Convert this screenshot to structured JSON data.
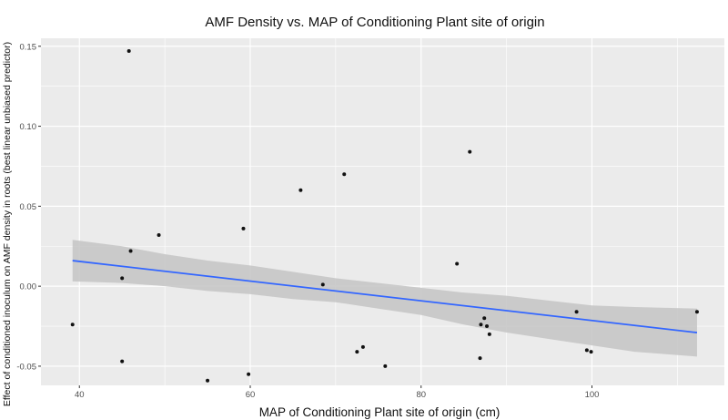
{
  "chart_data": {
    "type": "scatter",
    "title": "AMF Density vs. MAP of Conditioning Plant site of origin",
    "xlabel": "MAP of Conditioning Plant site of origin (cm)",
    "ylabel": "Effect of conditioned inoculum on AMF density in roots (best linear unbiased predictor)",
    "xlim": [
      35.5,
      115.5
    ],
    "ylim": [
      -0.062,
      0.155
    ],
    "x_ticks": [
      40,
      60,
      80,
      100
    ],
    "x_tick_labels": [
      "40",
      "60",
      "80",
      "100"
    ],
    "y_ticks": [
      -0.05,
      0.0,
      0.05,
      0.1,
      0.15
    ],
    "y_tick_labels": [
      "-0.05",
      "0.00",
      "0.05",
      "0.10",
      "0.15"
    ],
    "grid": true,
    "legend": "none",
    "colors": {
      "panel": "#ebebeb",
      "grid": "#ffffff",
      "point": "#111111",
      "fit_line": "#3366ff",
      "ribbon": "#c4c4c4"
    },
    "points": [
      {
        "x": 39.2,
        "y": -0.024
      },
      {
        "x": 45.0,
        "y": 0.005
      },
      {
        "x": 45.0,
        "y": -0.047
      },
      {
        "x": 45.8,
        "y": 0.147
      },
      {
        "x": 46.0,
        "y": 0.022
      },
      {
        "x": 49.3,
        "y": 0.032
      },
      {
        "x": 55.0,
        "y": -0.059
      },
      {
        "x": 59.2,
        "y": 0.036
      },
      {
        "x": 59.8,
        "y": -0.055
      },
      {
        "x": 65.9,
        "y": 0.06
      },
      {
        "x": 68.5,
        "y": 0.001
      },
      {
        "x": 71.0,
        "y": 0.07
      },
      {
        "x": 72.5,
        "y": -0.041
      },
      {
        "x": 73.2,
        "y": -0.038
      },
      {
        "x": 75.8,
        "y": -0.05
      },
      {
        "x": 84.2,
        "y": 0.014
      },
      {
        "x": 85.7,
        "y": 0.084
      },
      {
        "x": 86.9,
        "y": -0.045
      },
      {
        "x": 87.0,
        "y": -0.024
      },
      {
        "x": 87.4,
        "y": -0.02
      },
      {
        "x": 87.7,
        "y": -0.025
      },
      {
        "x": 88.0,
        "y": -0.03
      },
      {
        "x": 98.2,
        "y": -0.016
      },
      {
        "x": 99.4,
        "y": -0.04
      },
      {
        "x": 99.9,
        "y": -0.041
      },
      {
        "x": 112.3,
        "y": -0.016
      }
    ],
    "fit_line": {
      "x": [
        39.2,
        112.3
      ],
      "y": [
        0.016,
        -0.029
      ]
    },
    "confidence_band": {
      "x": [
        39.2,
        45,
        50,
        55,
        60,
        65,
        70,
        75,
        80,
        85,
        90,
        95,
        100,
        105,
        112.3
      ],
      "lower": [
        0.003,
        0.002,
        0.0,
        -0.003,
        -0.005,
        -0.008,
        -0.01,
        -0.014,
        -0.018,
        -0.024,
        -0.029,
        -0.033,
        -0.037,
        -0.041,
        -0.044
      ],
      "upper": [
        0.029,
        0.025,
        0.02,
        0.016,
        0.013,
        0.009,
        0.005,
        0.002,
        -0.001,
        -0.004,
        -0.006,
        -0.009,
        -0.012,
        -0.013,
        -0.014
      ]
    }
  }
}
